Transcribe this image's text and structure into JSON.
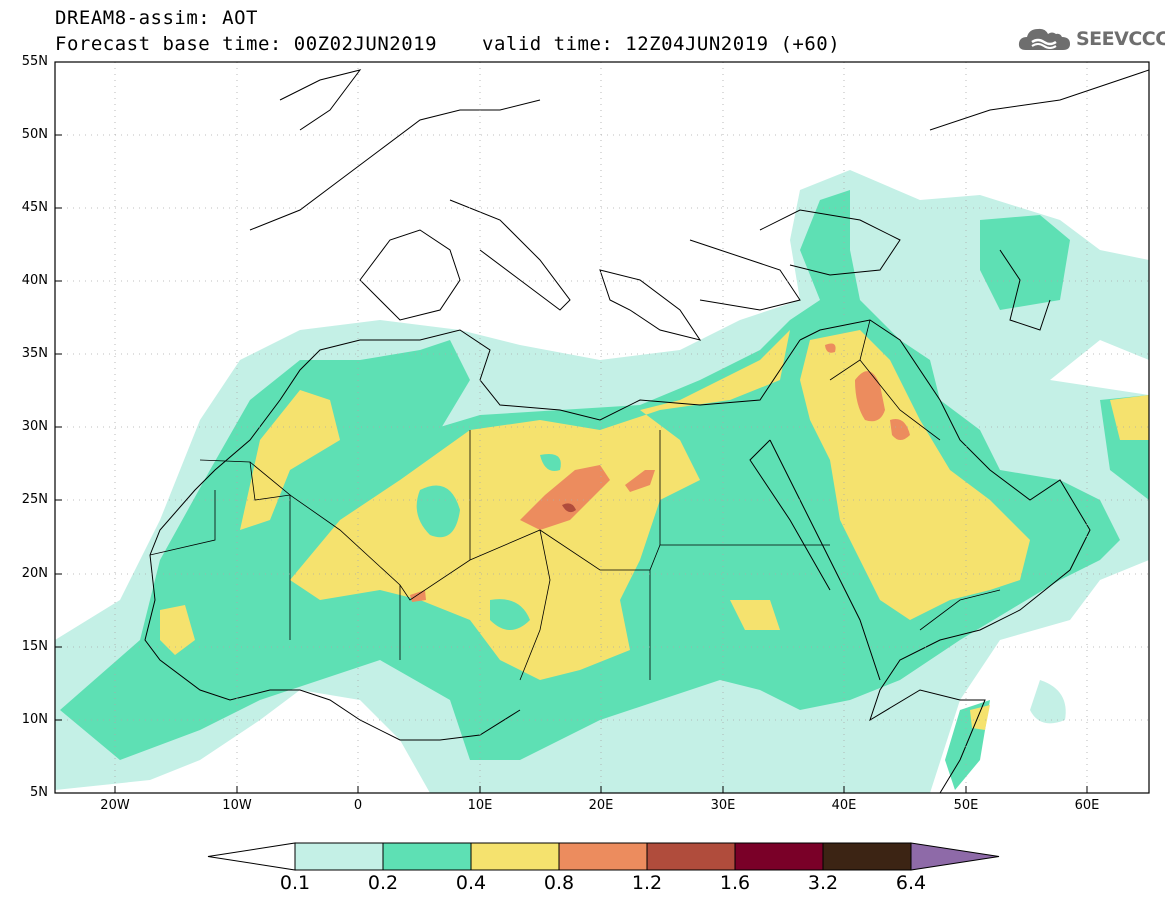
{
  "title": {
    "line1": "DREAM8-assim: AOT",
    "line2": "Forecast base time: 00Z02JUN2019",
    "valid": "valid time: 12Z04JUN2019 (+60)"
  },
  "logo": {
    "text": "SEEVCCC",
    "icon": "cloud-icon"
  },
  "map": {
    "lat_labels": [
      "55N",
      "50N",
      "45N",
      "40N",
      "35N",
      "30N",
      "25N",
      "20N",
      "15N",
      "10N",
      "5N"
    ],
    "lon_labels": [
      "20W",
      "10W",
      "0",
      "10E",
      "20E",
      "30E",
      "40E",
      "50E",
      "60E"
    ]
  },
  "colorbar": {
    "levels": [
      "0.1",
      "0.2",
      "0.4",
      "0.8",
      "1.2",
      "1.6",
      "3.2",
      "6.4"
    ],
    "colors": [
      "#ffffff",
      "#c4f0e6",
      "#5ee0b4",
      "#f5e26e",
      "#ec8c5e",
      "#b04c3c",
      "#7a0028",
      "#3c2414",
      "#8e6aa8"
    ]
  }
}
